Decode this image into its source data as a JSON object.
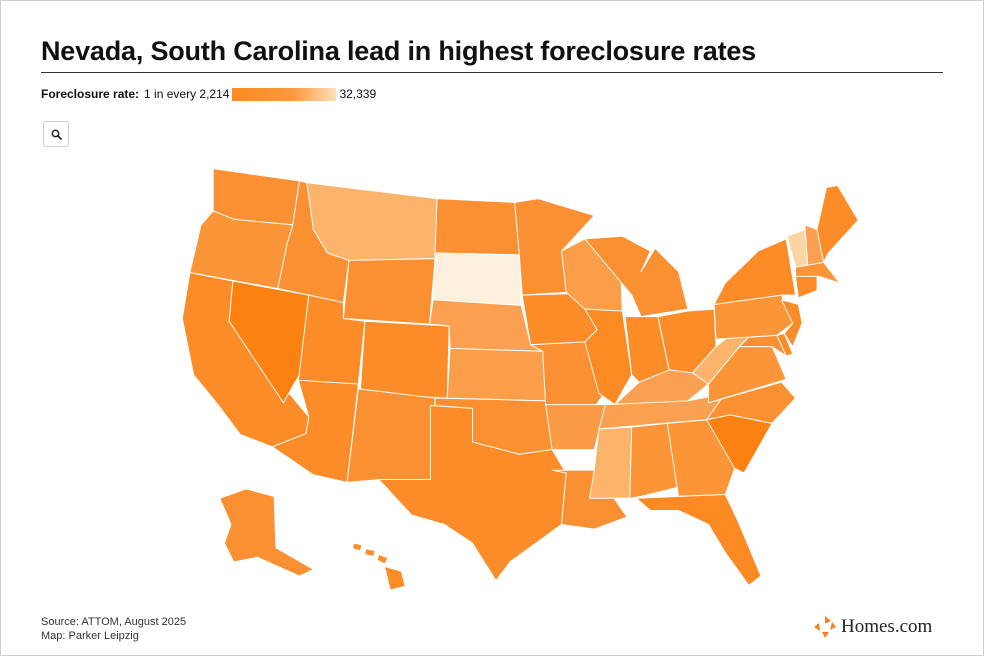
{
  "title": "Nevada, South Carolina lead in highest foreclosure rates",
  "legend": {
    "label": "Foreclosure rate:",
    "min_label": "1 in every 2,214",
    "max_label": "32,339",
    "color_high": "#fb8a22",
    "color_low": "#fde0b8"
  },
  "zoom_icon": "search-icon",
  "footer": {
    "source": "Source: ATTOM, August 2025",
    "credit": "Map: Parker Leipzig"
  },
  "brand": {
    "name": "Homes.com",
    "icon": "homes-logo-icon"
  },
  "states": [
    {
      "code": "WA",
      "fill": "#fb9032"
    },
    {
      "code": "OR",
      "fill": "#fb9538"
    },
    {
      "code": "CA",
      "fill": "#fb8c28"
    },
    {
      "code": "NV",
      "fill": "#fb8210"
    },
    {
      "code": "ID",
      "fill": "#fb9032"
    },
    {
      "code": "MT",
      "fill": "#fcb46b"
    },
    {
      "code": "WY",
      "fill": "#fb9032"
    },
    {
      "code": "UT",
      "fill": "#fb8c28"
    },
    {
      "code": "AZ",
      "fill": "#fb8c28"
    },
    {
      "code": "CO",
      "fill": "#fb8c28"
    },
    {
      "code": "NM",
      "fill": "#fb9032"
    },
    {
      "code": "ND",
      "fill": "#fb9032"
    },
    {
      "code": "SD",
      "fill": "#fdf0dc"
    },
    {
      "code": "NE",
      "fill": "#fba050"
    },
    {
      "code": "KS",
      "fill": "#fb9e4a"
    },
    {
      "code": "OK",
      "fill": "#fb9032"
    },
    {
      "code": "TX",
      "fill": "#fb8c28"
    },
    {
      "code": "MN",
      "fill": "#fb9032"
    },
    {
      "code": "IA",
      "fill": "#fb8c28"
    },
    {
      "code": "MO",
      "fill": "#fb9032"
    },
    {
      "code": "AR",
      "fill": "#fb9a44"
    },
    {
      "code": "LA",
      "fill": "#fb9032"
    },
    {
      "code": "WI",
      "fill": "#fb9e4a"
    },
    {
      "code": "IL",
      "fill": "#fb8a22"
    },
    {
      "code": "MI",
      "fill": "#fb9032"
    },
    {
      "code": "IN",
      "fill": "#fb8c28"
    },
    {
      "code": "OH",
      "fill": "#fb8c28"
    },
    {
      "code": "KY",
      "fill": "#fba050"
    },
    {
      "code": "TN",
      "fill": "#fba050"
    },
    {
      "code": "MS",
      "fill": "#fcb46b"
    },
    {
      "code": "AL",
      "fill": "#fb9538"
    },
    {
      "code": "GA",
      "fill": "#fb9538"
    },
    {
      "code": "FL",
      "fill": "#fb8a22"
    },
    {
      "code": "SC",
      "fill": "#fb8210"
    },
    {
      "code": "NC",
      "fill": "#fb9032"
    },
    {
      "code": "VA",
      "fill": "#fb9538"
    },
    {
      "code": "WV",
      "fill": "#fcb46b"
    },
    {
      "code": "PA",
      "fill": "#fb9538"
    },
    {
      "code": "NY",
      "fill": "#fb8c28"
    },
    {
      "code": "MD",
      "fill": "#fb9032"
    },
    {
      "code": "DE",
      "fill": "#fb8c28"
    },
    {
      "code": "NJ",
      "fill": "#fb8c28"
    },
    {
      "code": "CT",
      "fill": "#fb8c28"
    },
    {
      "code": "MA",
      "fill": "#fb9538"
    },
    {
      "code": "NH",
      "fill": "#fba050"
    },
    {
      "code": "VT",
      "fill": "#fdd5a3"
    },
    {
      "code": "ME",
      "fill": "#fb8c28"
    },
    {
      "code": "AK",
      "fill": "#fb9032"
    },
    {
      "code": "HI",
      "fill": "#fb8c28"
    }
  ]
}
